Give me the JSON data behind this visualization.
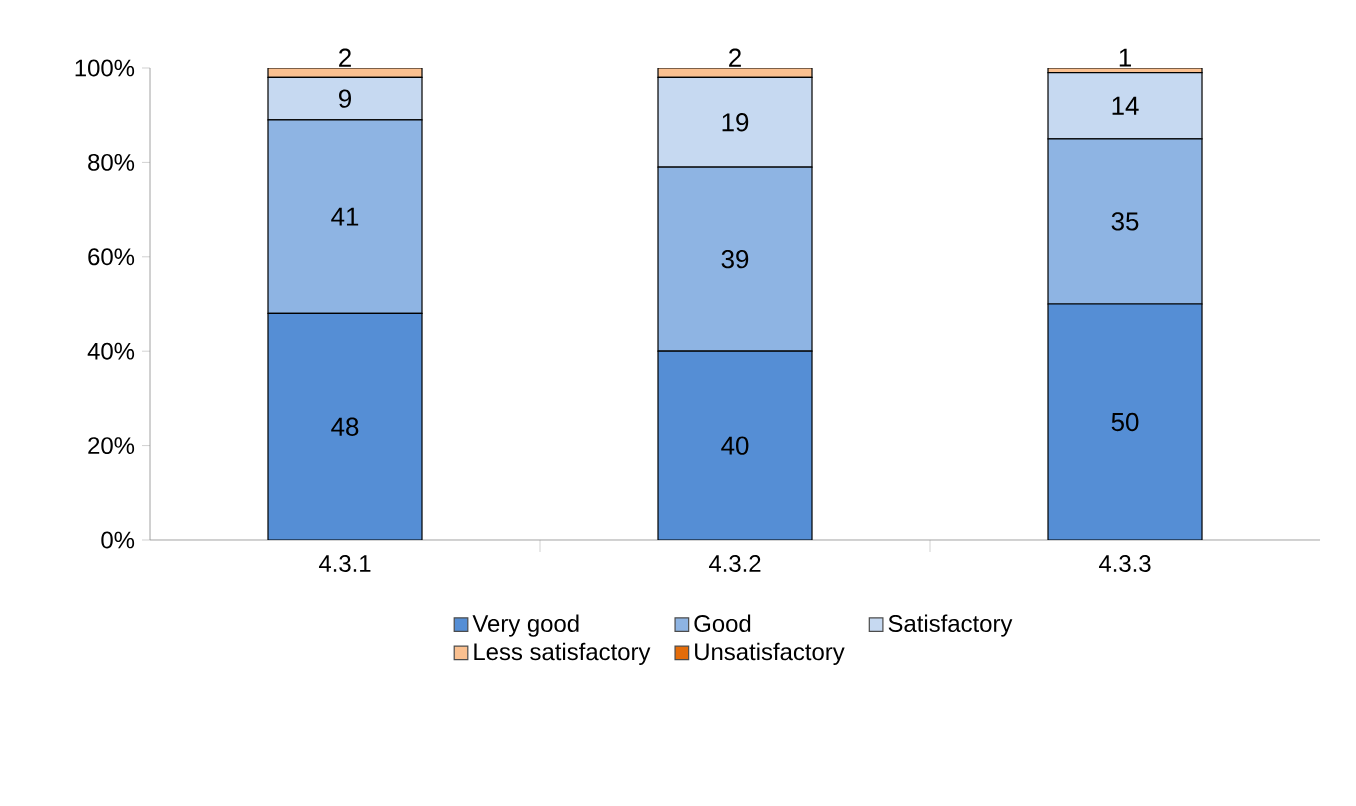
{
  "chart_data": {
    "type": "bar",
    "stacked": true,
    "categories": [
      "4.3.1",
      "4.3.2",
      "4.3.3"
    ],
    "series": [
      {
        "name": "Very good",
        "color": "#558ed5",
        "values": [
          48,
          40,
          50
        ],
        "value_labels": [
          "48",
          "40",
          "50"
        ]
      },
      {
        "name": "Good",
        "color": "#8eb4e3",
        "values": [
          41,
          39,
          35
        ],
        "value_labels": [
          "41",
          "39",
          "35"
        ]
      },
      {
        "name": "Satisfactory",
        "color": "#c6d9f1",
        "values": [
          9,
          19,
          14
        ],
        "value_labels": [
          "9",
          "19",
          "14"
        ]
      },
      {
        "name": "Less satisfactory",
        "color": "#fac090",
        "values": [
          2,
          2,
          1
        ],
        "value_labels": [
          "2",
          "2",
          "1"
        ]
      },
      {
        "name": "Unsatisfactory",
        "color": "#e46c0a",
        "values": [
          0,
          0,
          0
        ],
        "value_labels": [
          null,
          null,
          null
        ]
      }
    ],
    "ylim": [
      0,
      100
    ],
    "yticks": [
      {
        "value": 0,
        "label": "0%"
      },
      {
        "value": 20,
        "label": "20%"
      },
      {
        "value": 40,
        "label": "40%"
      },
      {
        "value": 60,
        "label": "60%"
      },
      {
        "value": 80,
        "label": "80%"
      },
      {
        "value": 100,
        "label": "100%"
      }
    ],
    "legend": "bottom"
  }
}
